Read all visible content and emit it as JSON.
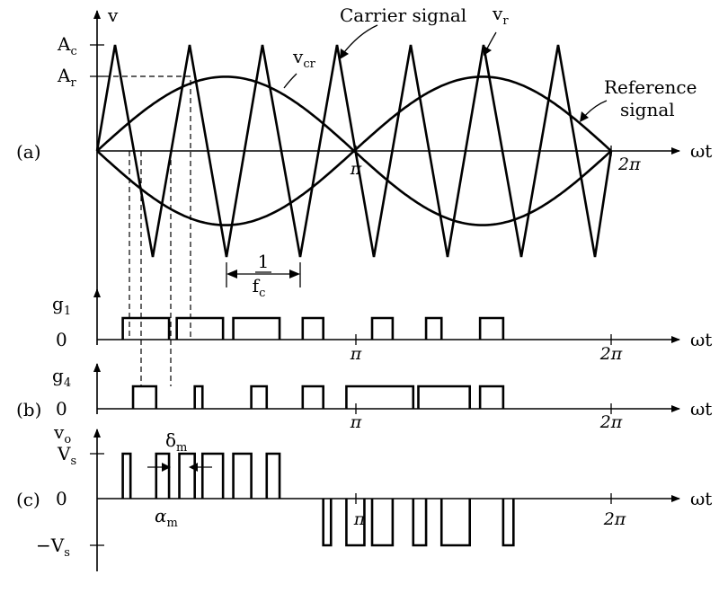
{
  "panels": {
    "a": {
      "tag": "(a)",
      "v_axis": "v",
      "wt_axis": "ωt",
      "ac_main": "A",
      "ac_sub": "c",
      "ar_main": "A",
      "ar_sub": "r",
      "carrier_label": "Carrier signal",
      "vr_main": "v",
      "vr_sub": "r",
      "vcr_main": "v",
      "vcr_sub": "cr",
      "reference_line1": "Reference",
      "reference_line2": "signal",
      "pi": "π",
      "two_pi": "2π",
      "period_num": "1",
      "period_den_main": "f",
      "period_den_sub": "c"
    },
    "g1": {
      "label_main": "g",
      "label_sub": "1",
      "zero": "0",
      "wt_axis": "ωt",
      "pi": "π",
      "two_pi": "2π"
    },
    "g4": {
      "tag": "(b)",
      "label_main": "g",
      "label_sub": "4",
      "zero": "0",
      "wt_axis": "ωt",
      "pi": "π",
      "two_pi": "2π"
    },
    "vo": {
      "tag": "(c)",
      "label_main": "v",
      "label_sub": "o",
      "vs_main": "V",
      "vs_sub": "s",
      "neg_vs_main": "−V",
      "neg_vs_sub": "s",
      "zero": "0",
      "wt_axis": "ωt",
      "pi": "π",
      "two_pi": "2π",
      "delta_main": "δ",
      "delta_sub": "m",
      "alpha_main": "α",
      "alpha_sub": "m"
    }
  },
  "waveform": {
    "carrier_peaks_per_cycle": 7,
    "carrier_amplitude": 1.0,
    "reference_amplitude": 0.7,
    "reference_type": "rectified-sine",
    "g1_pulses": [
      [
        0.05,
        0.14
      ],
      [
        0.155,
        0.245
      ],
      [
        0.265,
        0.355
      ],
      [
        0.4,
        0.44
      ],
      [
        0.535,
        0.575
      ],
      [
        0.64,
        0.67
      ],
      [
        0.745,
        0.79
      ]
    ],
    "g4_pulses": [
      [
        0.07,
        0.115
      ],
      [
        0.19,
        0.205
      ],
      [
        0.3,
        0.33
      ],
      [
        0.4,
        0.44
      ],
      [
        0.485,
        0.615
      ],
      [
        0.625,
        0.725
      ],
      [
        0.745,
        0.79
      ]
    ],
    "vo_positive_pulses": [
      [
        0.05,
        0.065
      ],
      [
        0.115,
        0.14
      ],
      [
        0.16,
        0.19
      ],
      [
        0.205,
        0.245
      ],
      [
        0.265,
        0.3
      ],
      [
        0.33,
        0.355
      ]
    ],
    "vo_negative_pulses": [
      [
        0.44,
        0.455
      ],
      [
        0.485,
        0.52
      ],
      [
        0.535,
        0.575
      ],
      [
        0.615,
        0.64
      ],
      [
        0.67,
        0.725
      ],
      [
        0.79,
        0.81
      ]
    ]
  }
}
